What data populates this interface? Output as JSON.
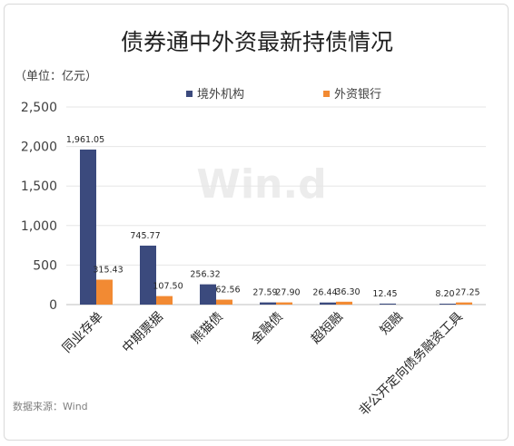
{
  "chart_data": {
    "type": "bar",
    "title": "债券通中外资最新持债情况",
    "unit_note": "（单位：亿元）",
    "categories": [
      "同业存单",
      "中期票据",
      "熊猫债",
      "金融债",
      "超短融",
      "短融",
      "非公开定向债务融资工具"
    ],
    "series": [
      {
        "name": "境外机构",
        "color": "#3b4a7d",
        "values": [
          1961.05,
          745.77,
          256.32,
          27.59,
          26.44,
          12.45,
          8.2
        ],
        "labels": [
          "1,961.05",
          "745.77",
          "256.32",
          "27.59",
          "26.44",
          "12.45",
          "8.20"
        ]
      },
      {
        "name": "外资银行",
        "color": "#f28a33",
        "values": [
          315.43,
          107.5,
          62.56,
          27.9,
          36.3,
          0,
          27.25
        ],
        "labels": [
          "315.43",
          "107.50",
          "62.56",
          "27.90",
          "36.30",
          "",
          "27.25"
        ]
      }
    ],
    "ylim": [
      0,
      2500
    ],
    "yticks": [
      0,
      500,
      1000,
      1500,
      2000,
      2500
    ],
    "ytick_labels": [
      "0",
      "500",
      "1,000",
      "1,500",
      "2,000",
      "2,500"
    ],
    "grid": true,
    "legend_position": "top-center",
    "source": "数据来源：Wind",
    "watermark": "Win.d"
  }
}
